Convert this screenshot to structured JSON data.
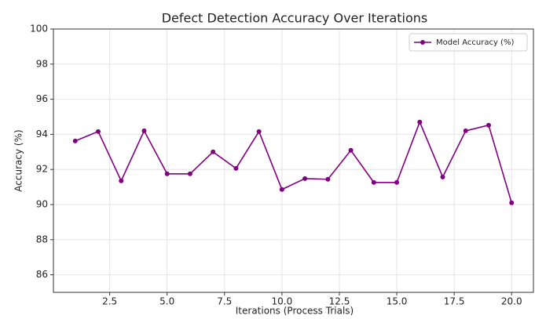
{
  "chart_data": {
    "type": "line",
    "title": "Defect Detection Accuracy Over Iterations",
    "xlabel": "Iterations (Process Trials)",
    "ylabel": "Accuracy (%)",
    "x": [
      1,
      2,
      3,
      4,
      5,
      6,
      7,
      8,
      9,
      10,
      11,
      12,
      13,
      14,
      15,
      16,
      17,
      18,
      19,
      20
    ],
    "series": [
      {
        "name": "Model Accuracy (%)",
        "color": "#800080",
        "values": [
          93.62,
          94.16,
          91.35,
          94.2,
          91.75,
          91.75,
          93.0,
          92.06,
          94.16,
          90.86,
          91.48,
          91.44,
          93.09,
          91.26,
          91.26,
          94.7,
          91.57,
          94.2,
          94.52,
          90.1
        ]
      }
    ],
    "xlim": [
      0.05,
      20.95
    ],
    "xticks": [
      2.5,
      {
        "value": 5,
        "label": "5.0"
      },
      7.5,
      {
        "value": 10,
        "label": "10.0"
      },
      12.5,
      {
        "value": 15,
        "label": "15.0"
      },
      17.5,
      {
        "value": 20,
        "label": "20.0"
      }
    ],
    "ylim": [
      85,
      100
    ],
    "yticks": [
      86,
      88,
      90,
      92,
      94,
      96,
      98,
      100
    ],
    "grid": true,
    "legend": "upper right"
  }
}
